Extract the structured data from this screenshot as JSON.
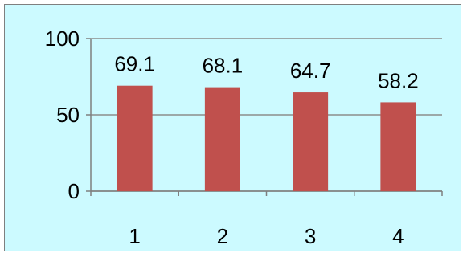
{
  "chart_data": {
    "type": "bar",
    "categories": [
      "1",
      "2",
      "3",
      "4"
    ],
    "values": [
      69.1,
      68.1,
      64.7,
      58.2
    ],
    "data_labels": [
      "69.1",
      "68.1",
      "64.7",
      "58.2"
    ],
    "y_ticks": [
      "0",
      "50",
      "100"
    ],
    "ylim": [
      0,
      100
    ],
    "title": "",
    "xlabel": "",
    "ylabel": "",
    "grid": true,
    "legend": "none",
    "bar_color": "#c0504d",
    "background_color": "#ccfaff"
  }
}
